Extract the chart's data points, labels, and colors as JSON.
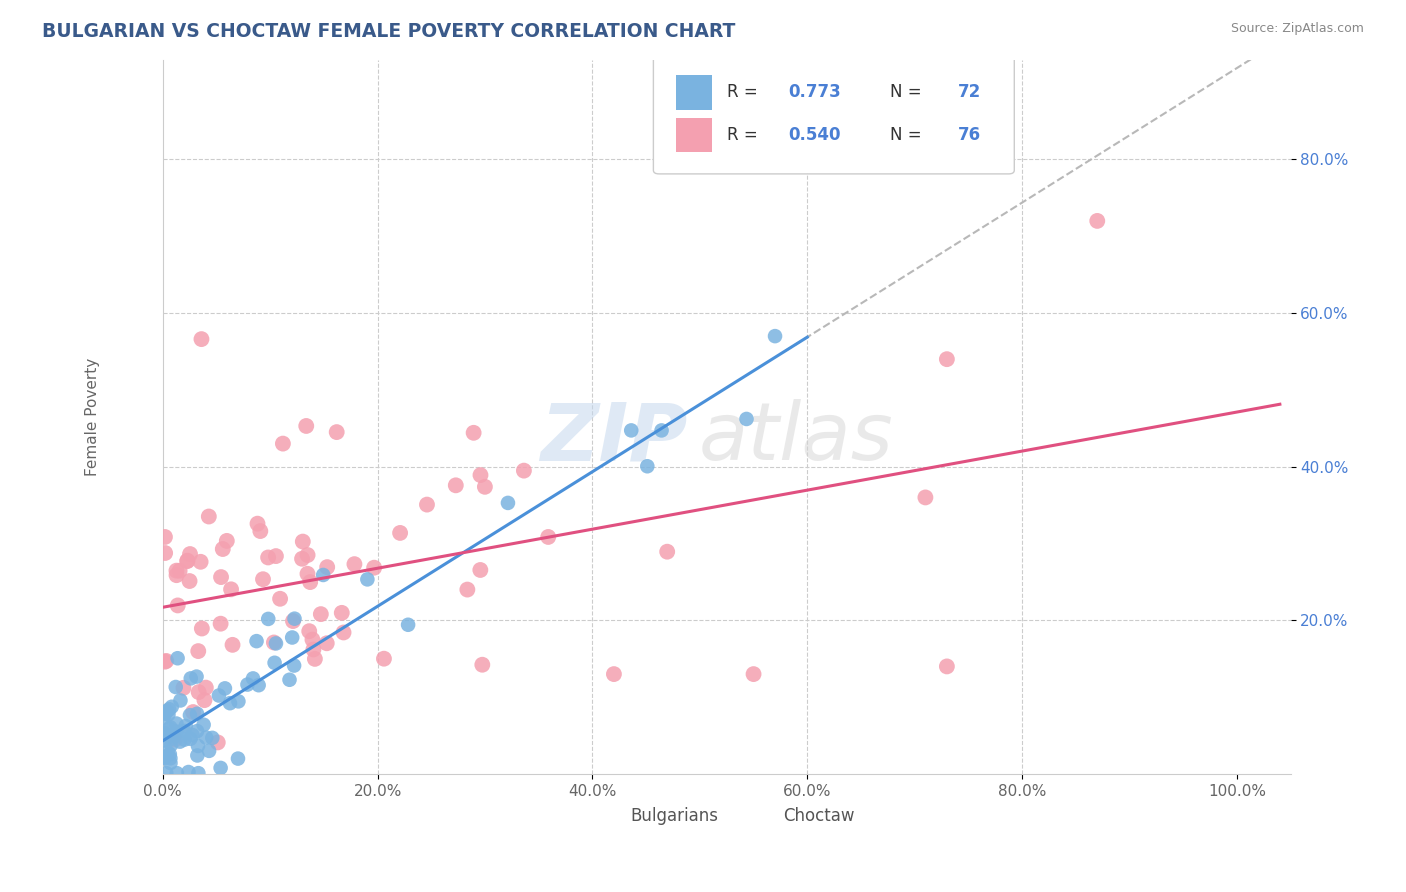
{
  "title": "BULGARIAN VS CHOCTAW FEMALE POVERTY CORRELATION CHART",
  "source": "Source: ZipAtlas.com",
  "ylabel": "Female Poverty",
  "bg_color": "#ffffff",
  "grid_color": "#cccccc",
  "bulgarian_color": "#7ab3e0",
  "choctaw_color": "#f4a0b0",
  "trend_bulgarian_color": "#4a90d9",
  "trend_choctaw_color": "#e05080",
  "trend_extrapolated_color": "#b8b8b8",
  "r_bulgarian": 0.773,
  "n_bulgarian": 72,
  "r_choctaw": 0.54,
  "n_choctaw": 76,
  "legend_n_color": "#4a7fd4",
  "title_color": "#3a5a8a",
  "source_color": "#888888",
  "xlim": [
    0.0,
    1.05
  ],
  "ylim": [
    0.0,
    0.93
  ],
  "xticks": [
    0.0,
    0.2,
    0.4,
    0.6,
    0.8,
    1.0
  ],
  "ytick_vals": [
    0.2,
    0.4,
    0.6,
    0.8
  ],
  "grid_xticks": [
    0.2,
    0.4,
    0.6,
    0.8
  ]
}
